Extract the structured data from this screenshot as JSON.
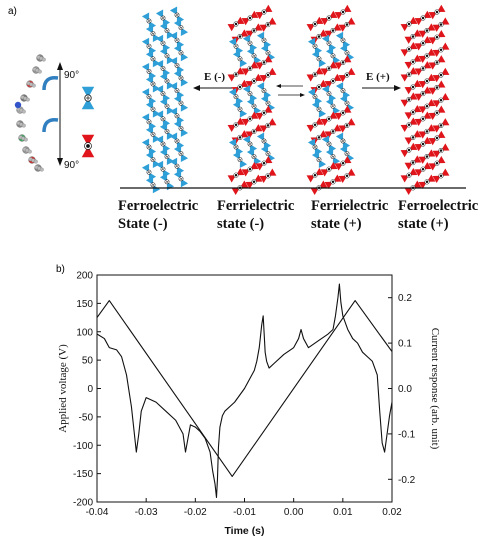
{
  "panel_a": {
    "letter": "a)",
    "angle_top": "90°",
    "angle_bottom": "90°",
    "field_minus": "E (-)",
    "field_plus": "E (+)",
    "states": [
      {
        "line1": "Ferroelectric",
        "line2": "State (-)"
      },
      {
        "line1": "Ferrielectric",
        "line2": "state (-)"
      },
      {
        "line1": "Ferrielectric",
        "line2": "state (+)"
      },
      {
        "line1": "Ferroelectric",
        "line2": "state (+)"
      }
    ],
    "colors": {
      "minus": "#2f9fd8",
      "plus": "#e0151b",
      "line": "#111111"
    }
  },
  "panel_b": {
    "letter": "b)"
  },
  "chart_data": {
    "type": "line",
    "xlabel": "Time (s)",
    "ylabel_left": "Applied voltage (V)",
    "ylabel_right": "Current response (arb. unit)",
    "xlim": [
      -0.04,
      0.02
    ],
    "ylim_left": [
      -200,
      200
    ],
    "ylim_right": [
      -0.25,
      0.25
    ],
    "x_ticks": [
      "-0.04",
      "-0.03",
      "-0.02",
      "-0.01",
      "0.00",
      "0.01",
      "0.02"
    ],
    "y_ticks_left": [
      "-200",
      "-150",
      "-100",
      "-50",
      "0",
      "50",
      "100",
      "150",
      "200"
    ],
    "y_ticks_right": [
      "-0.2",
      "-0.1",
      "0.0",
      "0.1",
      "0.2"
    ],
    "series": [
      {
        "axis": "left",
        "x": [
          -0.04,
          -0.0375,
          -0.0125,
          0.0125,
          0.02
        ],
        "y": [
          125,
          155,
          -155,
          155,
          65
        ]
      },
      {
        "axis": "right",
        "x": [
          -0.04,
          -0.0385,
          -0.0375,
          -0.036,
          -0.035,
          -0.034,
          -0.033,
          -0.0325,
          -0.032,
          -0.0315,
          -0.031,
          -0.03,
          -0.028,
          -0.026,
          -0.024,
          -0.0225,
          -0.022,
          -0.0215,
          -0.021,
          -0.02,
          -0.019,
          -0.018,
          -0.017,
          -0.0165,
          -0.016,
          -0.0157,
          -0.0155,
          -0.0153,
          -0.015,
          -0.0145,
          -0.014,
          -0.012,
          -0.01,
          -0.008,
          -0.0075,
          -0.007,
          -0.0065,
          -0.0062,
          -0.006,
          -0.0058,
          -0.0055,
          -0.005,
          -0.004,
          -0.002,
          0.0,
          0.001,
          0.0015,
          0.002,
          0.003,
          0.005,
          0.007,
          0.008,
          0.0085,
          0.009,
          0.0093,
          0.0096,
          0.01,
          0.011,
          0.012,
          0.013,
          0.014,
          0.015,
          0.016,
          0.017,
          0.0175,
          0.018,
          0.0185,
          0.019,
          0.0195,
          0.02
        ],
        "y": [
          0.12,
          0.11,
          0.09,
          0.085,
          0.07,
          0.03,
          -0.04,
          -0.09,
          -0.14,
          -0.1,
          -0.05,
          -0.02,
          -0.03,
          -0.05,
          -0.07,
          -0.1,
          -0.14,
          -0.11,
          -0.08,
          -0.085,
          -0.095,
          -0.11,
          -0.14,
          -0.18,
          -0.21,
          -0.24,
          -0.2,
          -0.13,
          -0.085,
          -0.06,
          -0.05,
          -0.03,
          0.0,
          0.04,
          0.06,
          0.09,
          0.14,
          0.16,
          0.12,
          0.08,
          0.06,
          0.045,
          0.055,
          0.075,
          0.09,
          0.11,
          0.13,
          0.11,
          0.09,
          0.105,
          0.12,
          0.13,
          0.16,
          0.2,
          0.23,
          0.19,
          0.16,
          0.13,
          0.11,
          0.1,
          0.08,
          0.07,
          0.06,
          0.03,
          -0.05,
          -0.12,
          -0.14,
          -0.1,
          -0.06,
          -0.03
        ]
      }
    ]
  }
}
